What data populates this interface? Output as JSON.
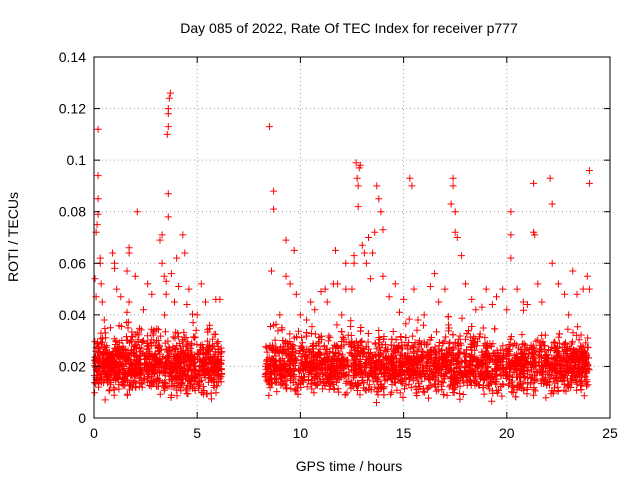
{
  "chart_data": {
    "type": "scatter",
    "title": "Day 085 of 2022, Rate Of TEC Index for receiver p777",
    "xlabel": "GPS time / hours",
    "ylabel": "ROTI / TECUs",
    "xlim": [
      0,
      25
    ],
    "ylim": [
      0,
      0.14
    ],
    "x_ticks": [
      0,
      5,
      10,
      15,
      20,
      25
    ],
    "x_tick_labels": [
      "0",
      "5",
      "10",
      "15",
      "20",
      "25"
    ],
    "y_ticks": [
      0,
      0.02,
      0.04,
      0.06,
      0.08,
      0.1,
      0.12,
      0.14
    ],
    "y_tick_labels": [
      "0",
      "0.02",
      "0.04",
      "0.06",
      "0.08",
      "0.1",
      "0.12",
      "0.14"
    ],
    "grid": true,
    "marker": "plus",
    "series_color": "#ff0000",
    "data_gap_hours": [
      6.2,
      8.3
    ],
    "series": [
      {
        "points": [
          [
            0.05,
            0.054
          ],
          [
            0.1,
            0.047
          ],
          [
            0.1,
            0.072
          ],
          [
            0.15,
            0.075
          ],
          [
            0.2,
            0.079
          ],
          [
            0.2,
            0.085
          ],
          [
            0.2,
            0.094
          ],
          [
            0.2,
            0.112
          ],
          [
            0.3,
            0.06
          ],
          [
            0.3,
            0.062
          ],
          [
            0.35,
            0.052
          ],
          [
            0.4,
            0.045
          ],
          [
            0.5,
            0.038
          ],
          [
            0.55,
            0.033
          ],
          [
            0.8,
            0.035
          ],
          [
            0.9,
            0.064
          ],
          [
            1.0,
            0.06
          ],
          [
            1.0,
            0.058
          ],
          [
            1.1,
            0.05
          ],
          [
            1.3,
            0.047
          ],
          [
            1.6,
            0.057
          ],
          [
            1.7,
            0.045
          ],
          [
            1.6,
            0.041
          ],
          [
            1.7,
            0.064
          ],
          [
            1.7,
            0.066
          ],
          [
            2.1,
            0.08
          ],
          [
            2.0,
            0.055
          ],
          [
            2.1,
            0.033
          ],
          [
            2.4,
            0.042
          ],
          [
            2.6,
            0.052
          ],
          [
            2.8,
            0.048
          ],
          [
            3.2,
            0.069
          ],
          [
            3.3,
            0.071
          ],
          [
            3.3,
            0.06
          ],
          [
            3.4,
            0.055
          ],
          [
            3.5,
            0.048
          ],
          [
            3.5,
            0.053
          ],
          [
            3.6,
            0.087
          ],
          [
            3.6,
            0.078
          ],
          [
            3.55,
            0.11
          ],
          [
            3.6,
            0.113
          ],
          [
            3.6,
            0.118
          ],
          [
            3.6,
            0.12
          ],
          [
            3.65,
            0.124
          ],
          [
            3.7,
            0.126
          ],
          [
            3.75,
            0.056
          ],
          [
            3.9,
            0.045
          ],
          [
            4.0,
            0.062
          ],
          [
            4.1,
            0.051
          ],
          [
            4.3,
            0.071
          ],
          [
            4.4,
            0.064
          ],
          [
            4.5,
            0.044
          ],
          [
            4.6,
            0.05
          ],
          [
            4.8,
            0.037
          ],
          [
            5.0,
            0.04
          ],
          [
            5.2,
            0.052
          ],
          [
            5.4,
            0.045
          ],
          [
            5.6,
            0.036
          ],
          [
            5.9,
            0.046
          ],
          [
            6.1,
            0.046
          ],
          [
            8.5,
            0.113
          ],
          [
            8.6,
            0.057
          ],
          [
            8.7,
            0.081
          ],
          [
            8.7,
            0.088
          ],
          [
            9.0,
            0.04
          ],
          [
            9.1,
            0.035
          ],
          [
            9.3,
            0.055
          ],
          [
            9.3,
            0.069
          ],
          [
            9.5,
            0.052
          ],
          [
            9.7,
            0.065
          ],
          [
            9.8,
            0.048
          ],
          [
            10.0,
            0.04
          ],
          [
            10.3,
            0.038
          ],
          [
            10.5,
            0.045
          ],
          [
            10.7,
            0.042
          ],
          [
            11.0,
            0.049
          ],
          [
            11.2,
            0.05
          ],
          [
            11.3,
            0.045
          ],
          [
            11.6,
            0.052
          ],
          [
            11.7,
            0.065
          ],
          [
            11.8,
            0.052
          ],
          [
            12.0,
            0.04
          ],
          [
            12.2,
            0.05
          ],
          [
            12.2,
            0.06
          ],
          [
            12.5,
            0.05
          ],
          [
            12.6,
            0.06
          ],
          [
            12.6,
            0.063
          ],
          [
            12.7,
            0.099
          ],
          [
            12.75,
            0.093
          ],
          [
            12.8,
            0.09
          ],
          [
            12.8,
            0.082
          ],
          [
            12.85,
            0.097
          ],
          [
            12.9,
            0.098
          ],
          [
            13.0,
            0.067
          ],
          [
            13.1,
            0.064
          ],
          [
            13.2,
            0.06
          ],
          [
            13.3,
            0.07
          ],
          [
            13.4,
            0.054
          ],
          [
            13.5,
            0.064
          ],
          [
            13.6,
            0.072
          ],
          [
            13.7,
            0.09
          ],
          [
            13.8,
            0.085
          ],
          [
            13.9,
            0.08
          ],
          [
            14.0,
            0.073
          ],
          [
            14.0,
            0.055
          ],
          [
            14.3,
            0.047
          ],
          [
            14.6,
            0.052
          ],
          [
            14.8,
            0.041
          ],
          [
            15.0,
            0.046
          ],
          [
            15.3,
            0.093
          ],
          [
            15.4,
            0.09
          ],
          [
            15.5,
            0.05
          ],
          [
            15.7,
            0.038
          ],
          [
            16.0,
            0.04
          ],
          [
            16.3,
            0.051
          ],
          [
            16.5,
            0.056
          ],
          [
            16.7,
            0.045
          ],
          [
            17.0,
            0.05
          ],
          [
            17.3,
            0.083
          ],
          [
            17.4,
            0.093
          ],
          [
            17.4,
            0.09
          ],
          [
            17.5,
            0.08
          ],
          [
            17.5,
            0.072
          ],
          [
            17.6,
            0.07
          ],
          [
            17.8,
            0.063
          ],
          [
            18.0,
            0.052
          ],
          [
            18.3,
            0.046
          ],
          [
            18.5,
            0.042
          ],
          [
            18.8,
            0.043
          ],
          [
            19.0,
            0.05
          ],
          [
            19.3,
            0.044
          ],
          [
            19.5,
            0.047
          ],
          [
            19.8,
            0.05
          ],
          [
            20.0,
            0.042
          ],
          [
            20.2,
            0.08
          ],
          [
            20.2,
            0.071
          ],
          [
            20.2,
            0.062
          ],
          [
            20.5,
            0.05
          ],
          [
            20.8,
            0.045
          ],
          [
            21.0,
            0.044
          ],
          [
            21.3,
            0.091
          ],
          [
            21.3,
            0.072
          ],
          [
            21.35,
            0.071
          ],
          [
            21.5,
            0.052
          ],
          [
            21.7,
            0.045
          ],
          [
            22.1,
            0.093
          ],
          [
            22.2,
            0.083
          ],
          [
            22.2,
            0.06
          ],
          [
            22.5,
            0.052
          ],
          [
            22.8,
            0.048
          ],
          [
            23.0,
            0.04
          ],
          [
            23.2,
            0.057
          ],
          [
            23.4,
            0.048
          ],
          [
            23.7,
            0.05
          ],
          [
            23.9,
            0.055
          ],
          [
            24.0,
            0.096
          ],
          [
            24.0,
            0.091
          ],
          [
            24.0,
            0.05
          ]
        ],
        "bulk_band": {
          "description": "dense cloud of points",
          "x_ranges": [
            [
              0.0,
              6.2
            ],
            [
              8.3,
              24.0
            ]
          ],
          "y_low": 0.005,
          "y_high": 0.035,
          "y_center": 0.019
        }
      }
    ]
  }
}
